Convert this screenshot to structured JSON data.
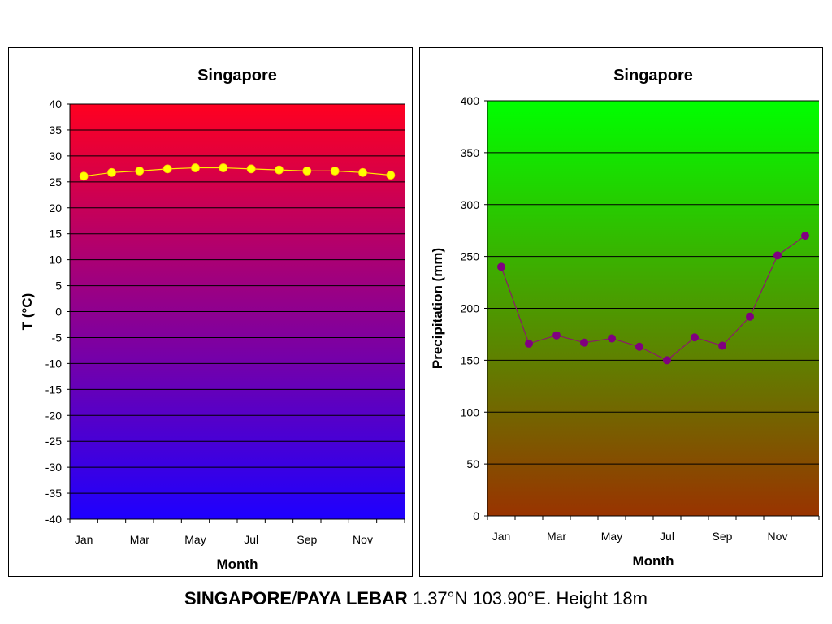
{
  "caption": {
    "station_part1": "SINGAPORE",
    "separator": "/",
    "station_part2": "PAYA LEBAR",
    "details": " 1.37°N 103.90°E. Height 18m"
  },
  "chart_data": [
    {
      "type": "line",
      "title": "Singapore",
      "xlabel": "Month",
      "ylabel": "T (°C)",
      "ylim": [
        -40,
        40
      ],
      "ytick_step": 5,
      "grid": true,
      "legend": "none",
      "x": [
        "Jan",
        "Feb",
        "Mar",
        "Apr",
        "May",
        "Jun",
        "Jul",
        "Aug",
        "Sep",
        "Oct",
        "Nov",
        "Dec"
      ],
      "x_tick_labels": [
        "Jan",
        "Mar",
        "May",
        "Jul",
        "Sep",
        "Nov"
      ],
      "series": [
        {
          "values": [
            26.1,
            26.8,
            27.1,
            27.5,
            27.7,
            27.7,
            27.5,
            27.3,
            27.1,
            27.1,
            26.8,
            26.3
          ]
        }
      ],
      "colors": {
        "line": "#ffeb00",
        "marker": "#ffff00",
        "marker_edge": "#ffcc00",
        "background_top": "#ff0020",
        "background_bottom": "#1e00ff"
      }
    },
    {
      "type": "line",
      "title": "Singapore",
      "xlabel": "Month",
      "ylabel": "Precipitation (mm)",
      "ylim": [
        0,
        400
      ],
      "ytick_step": 50,
      "grid": true,
      "legend": "none",
      "x": [
        "Jan",
        "Feb",
        "Mar",
        "Apr",
        "May",
        "Jun",
        "Jul",
        "Aug",
        "Sep",
        "Oct",
        "Nov",
        "Dec"
      ],
      "x_tick_labels": [
        "Jan",
        "Mar",
        "May",
        "Jul",
        "Sep",
        "Nov"
      ],
      "series": [
        {
          "values": [
            240,
            166,
            174,
            167,
            171,
            163,
            150,
            172,
            164,
            192,
            251,
            270
          ]
        }
      ],
      "colors": {
        "line": "#8b1a6a",
        "marker": "#800080",
        "background_top": "#00ff00",
        "background_bottom": "#993300"
      }
    }
  ]
}
